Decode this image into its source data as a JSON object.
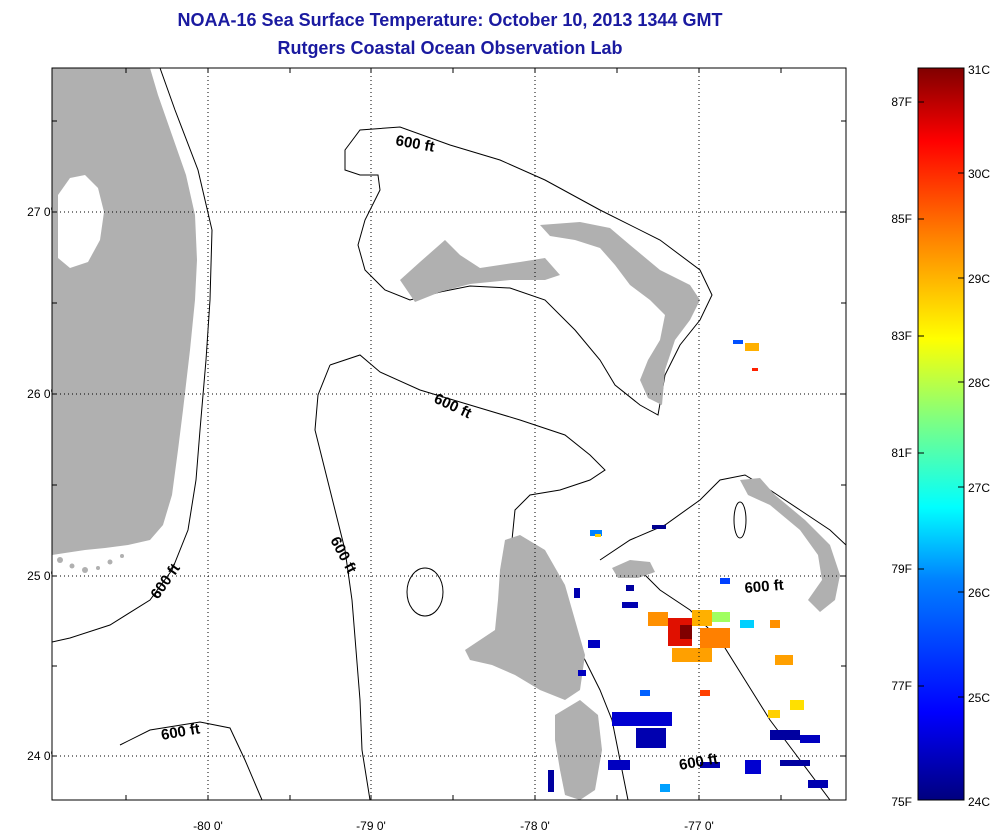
{
  "title": "NOAA-16 Sea Surface Temperature:  October 10, 2013 1344 GMT",
  "subtitle": "Rutgers Coastal Ocean Observation Lab",
  "map": {
    "lon_labels": [
      "-80 0'",
      "-79 0'",
      "-78 0'",
      "-77 0'"
    ],
    "lat_labels": [
      "27 0'",
      "26 0'",
      "25 0'",
      "24 0'"
    ],
    "contour_labels": [
      "600 ft",
      "600 ft",
      "600 ft",
      "600 ft",
      "600 ft",
      "600 ft"
    ],
    "colors": {
      "land": "#b0b0b0",
      "water": "#ffffff",
      "frame": "#000000"
    }
  },
  "colorbar": {
    "celsius_labels": [
      "31C",
      "30C",
      "29C",
      "28C",
      "27C",
      "26C",
      "25C",
      "24C"
    ],
    "fahrenheit_labels": [
      "87F",
      "85F",
      "83F",
      "81F",
      "79F",
      "77F",
      "75F"
    ],
    "range_c": [
      24,
      31
    ],
    "palette": [
      "#00007f",
      "#0000ff",
      "#0080ff",
      "#00ffff",
      "#80ff80",
      "#ffff00",
      "#ff8000",
      "#ff0000",
      "#800000"
    ]
  }
}
